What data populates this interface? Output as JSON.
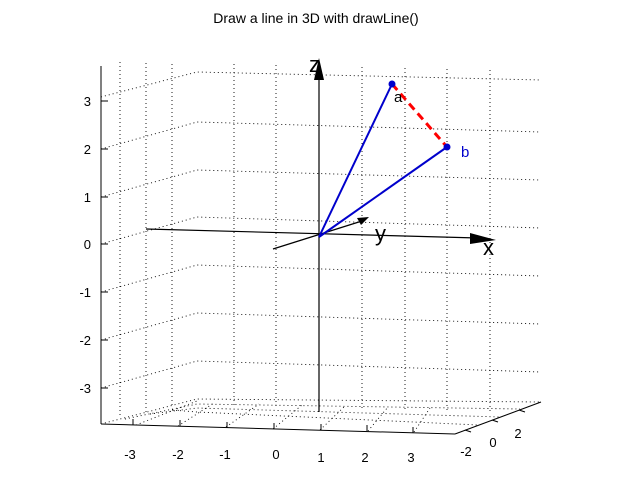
{
  "chart_data": {
    "type": "line",
    "title": "Draw a line in 3D with drawLine()",
    "z_ticks": [
      "3",
      "2",
      "1",
      "0",
      "-1",
      "-2",
      "-3"
    ],
    "x_ticks": [
      "-3",
      "-2",
      "-1",
      "0",
      "1",
      "2",
      "3"
    ],
    "y_ticks": [
      "-2",
      "0",
      "2"
    ],
    "axis_labels": {
      "x": "x",
      "y": "y",
      "z": "z"
    },
    "points": [
      {
        "name": "a",
        "label": "a",
        "color": "#000000"
      },
      {
        "name": "b",
        "label": "b",
        "color": "#0000cc"
      }
    ],
    "series": [
      {
        "from": "origin",
        "to": "a",
        "color": "#0000cc",
        "style": "solid"
      },
      {
        "from": "origin",
        "to": "b",
        "color": "#0000cc",
        "style": "solid"
      },
      {
        "from": "a",
        "to": "b",
        "color": "#ff0000",
        "style": "dashed"
      }
    ],
    "grid": true,
    "colors": {
      "vector": "#0000cc",
      "segment": "#ff0000",
      "point": "#0000cc"
    }
  }
}
